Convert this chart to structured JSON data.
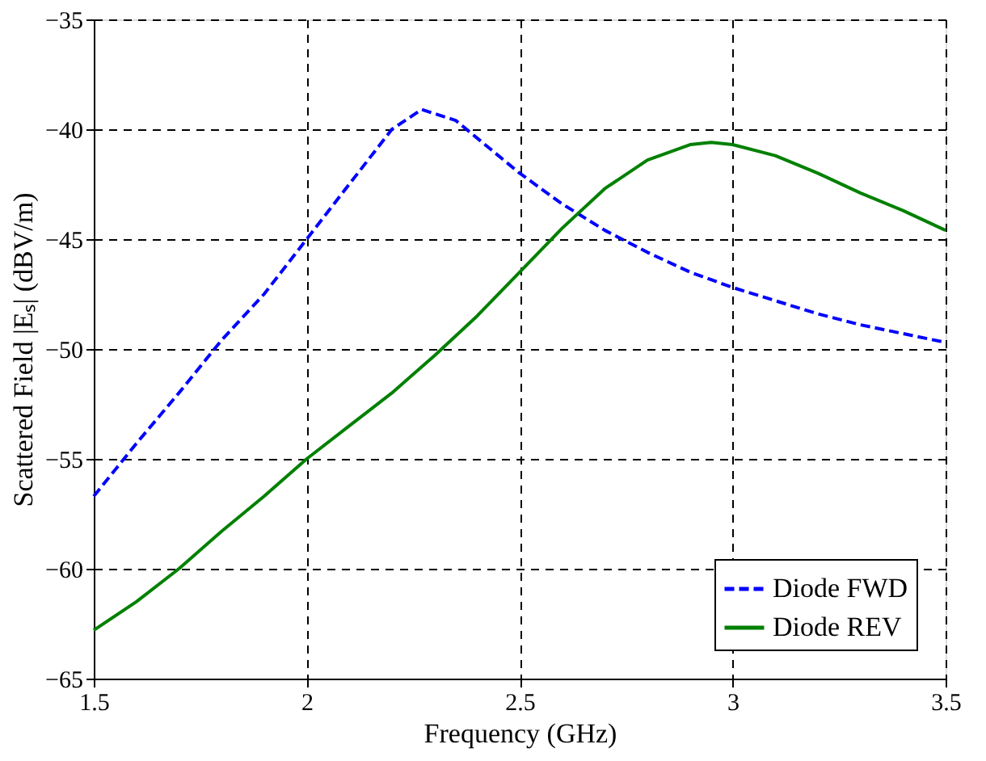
{
  "chart_data": {
    "type": "line",
    "xlabel": "Frequency (GHz)",
    "ylabel": "Scattered Field |Eₛ| (dBV/m)",
    "xlim": [
      1.5,
      3.5
    ],
    "xticks": [
      1.5,
      2,
      2.5,
      3,
      3.5
    ],
    "ylim": [
      -65,
      -35
    ],
    "yticks": [
      -65,
      -60,
      -55,
      -50,
      -45,
      -40,
      -35
    ],
    "grid": true,
    "legend": "bottom right",
    "series": [
      {
        "name": "Diode FWD",
        "color": "#0000ff",
        "line_style": "dashed",
        "x": [
          1.5,
          1.6,
          1.7,
          1.8,
          1.9,
          2.0,
          2.1,
          2.2,
          2.27,
          2.35,
          2.4,
          2.5,
          2.6,
          2.7,
          2.8,
          2.9,
          3.0,
          3.1,
          3.2,
          3.3,
          3.4,
          3.5
        ],
        "values": [
          -56.7,
          -54.3,
          -52,
          -49.6,
          -47.5,
          -45,
          -42.5,
          -40,
          -39.1,
          -39.6,
          -40.4,
          -42,
          -43.4,
          -44.6,
          -45.6,
          -46.5,
          -47.2,
          -47.8,
          -48.4,
          -48.9,
          -49.3,
          -49.7
        ]
      },
      {
        "name": "Diode REV",
        "color": "#008000",
        "line_style": "solid",
        "x": [
          1.5,
          1.6,
          1.7,
          1.8,
          1.9,
          2.0,
          2.1,
          2.2,
          2.3,
          2.4,
          2.5,
          2.6,
          2.7,
          2.8,
          2.9,
          2.95,
          3.0,
          3.1,
          3.2,
          3.3,
          3.4,
          3.5
        ],
        "values": [
          -62.8,
          -61.5,
          -60,
          -58.3,
          -56.7,
          -55,
          -53.5,
          -52,
          -50.3,
          -48.5,
          -46.5,
          -44.5,
          -42.7,
          -41.4,
          -40.7,
          -40.6,
          -40.7,
          -41.2,
          -42,
          -42.9,
          -43.7,
          -44.6
        ]
      }
    ]
  }
}
